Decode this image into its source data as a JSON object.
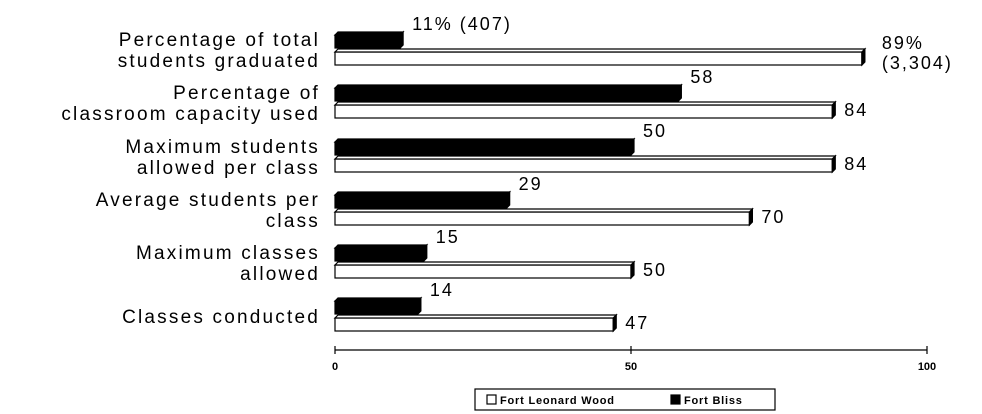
{
  "chart_data": {
    "type": "bar",
    "orientation": "horizontal",
    "categories": [
      [
        "Percentage of total",
        "students graduated"
      ],
      [
        "Percentage of",
        "classroom capacity used"
      ],
      [
        "Maximum students",
        "allowed per class"
      ],
      [
        "Average students per",
        "class"
      ],
      [
        "Maximum classes",
        "allowed"
      ],
      [
        "Classes conducted"
      ]
    ],
    "series": [
      {
        "name": "Fort Bliss",
        "color": "#000000",
        "values": [
          11,
          58,
          50,
          29,
          15,
          14
        ],
        "labels": [
          [
            "11% (407)"
          ],
          [
            "58"
          ],
          [
            "50"
          ],
          [
            "29"
          ],
          [
            "15"
          ],
          [
            "14"
          ]
        ]
      },
      {
        "name": "Fort Leonard Wood",
        "color": "#ffffff",
        "values": [
          89,
          84,
          84,
          70,
          50,
          47
        ],
        "labels": [
          [
            "89%",
            "(3,304)"
          ],
          [
            "84"
          ],
          [
            "84"
          ],
          [
            "70"
          ],
          [
            "50"
          ],
          [
            "47"
          ]
        ]
      }
    ],
    "xlim": [
      0,
      100
    ],
    "xticks": [
      "0",
      "50",
      "100"
    ],
    "legend": {
      "placement": "bottom-center",
      "items": [
        "Fort Leonard Wood",
        "Fort Bliss"
      ]
    },
    "grid": false,
    "title": "",
    "xlabel": "",
    "ylabel": ""
  }
}
